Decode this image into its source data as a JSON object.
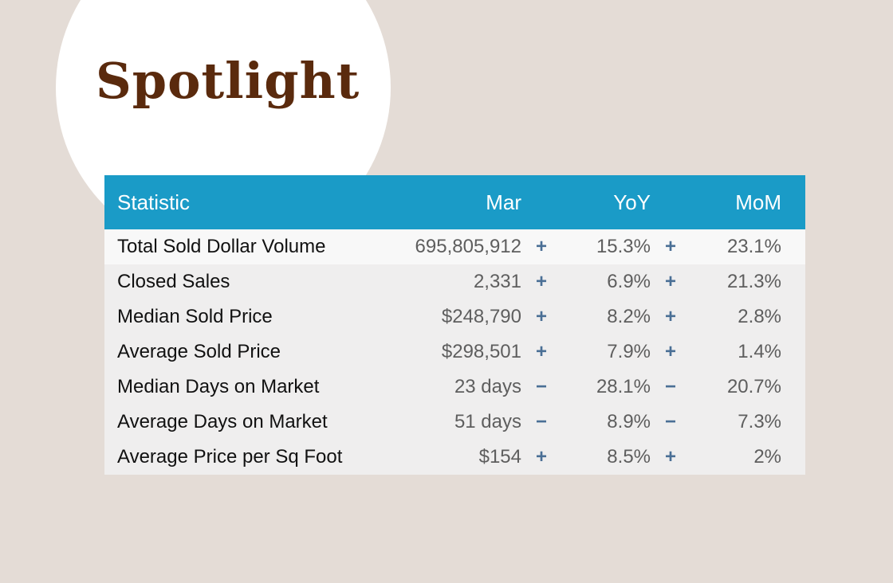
{
  "header": {
    "title": "Spotlight"
  },
  "table": {
    "columns": {
      "statistic": "Statistic",
      "month": "Mar",
      "yoy": "YoY",
      "mom": "MoM"
    },
    "rows": [
      {
        "statistic": "Total Sold Dollar Volume",
        "month": "695,805,912",
        "yoy_sign": "+",
        "yoy": "15.3%",
        "mom_sign": "+",
        "mom": "23.1%"
      },
      {
        "statistic": "Closed Sales",
        "month": "2,331",
        "yoy_sign": "+",
        "yoy": "6.9%",
        "mom_sign": "+",
        "mom": "21.3%"
      },
      {
        "statistic": "Median Sold Price",
        "month": "$248,790",
        "yoy_sign": "+",
        "yoy": "8.2%",
        "mom_sign": "+",
        "mom": "2.8%"
      },
      {
        "statistic": "Average Sold Price",
        "month": "$298,501",
        "yoy_sign": "+",
        "yoy": "7.9%",
        "mom_sign": "+",
        "mom": "1.4%"
      },
      {
        "statistic": "Median Days on Market",
        "month": "23 days",
        "yoy_sign": "−",
        "yoy": "28.1%",
        "mom_sign": "−",
        "mom": "20.7%"
      },
      {
        "statistic": "Average Days on Market",
        "month": "51 days",
        "yoy_sign": "−",
        "yoy": "8.9%",
        "mom_sign": "−",
        "mom": "7.3%"
      },
      {
        "statistic": "Average Price per Sq Foot",
        "month": "$154",
        "yoy_sign": "+",
        "yoy": "8.5%",
        "mom_sign": "+",
        "mom": "2%"
      }
    ]
  },
  "colors": {
    "background": "#e4dcd6",
    "header_bar": "#1a9bc7",
    "title": "#5a2a0d",
    "sign": "#4a6f95"
  }
}
